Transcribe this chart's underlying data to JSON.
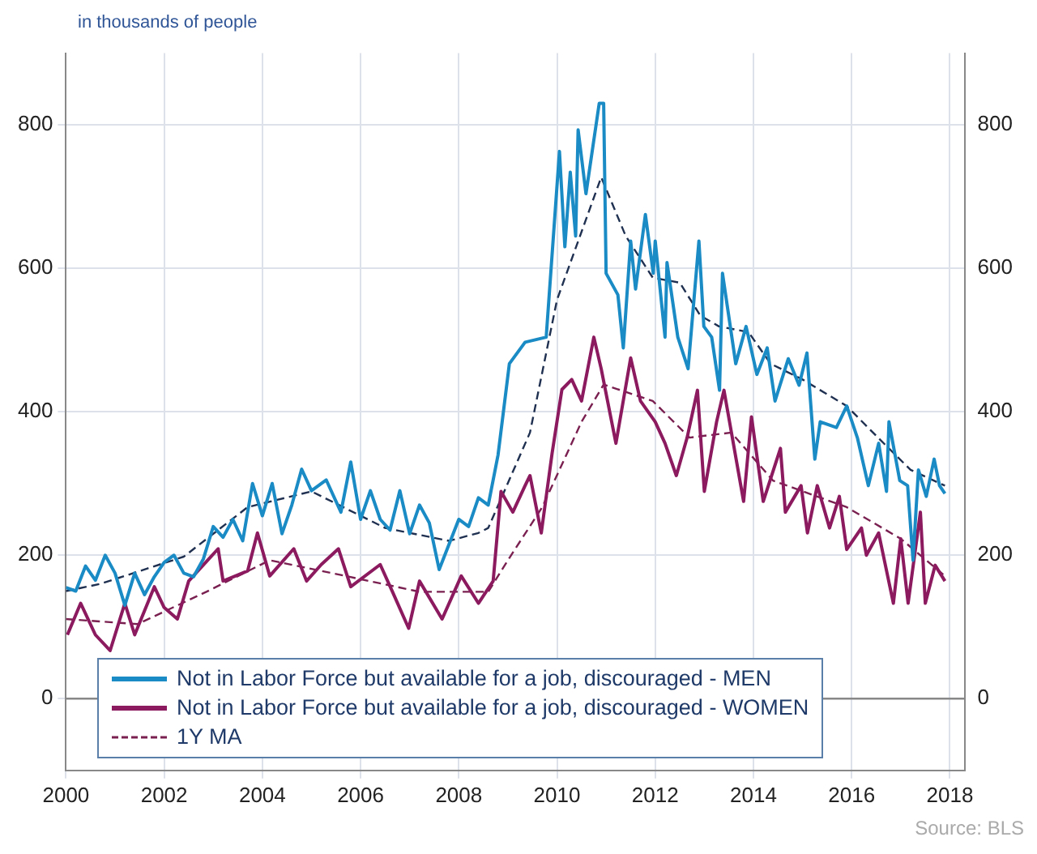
{
  "chart_data": {
    "type": "line",
    "ylabel": "in thousands of people",
    "annotations": [
      "Source: BLS"
    ],
    "xlim": [
      2000,
      2018.3
    ],
    "xticks": [
      2000,
      2002,
      2004,
      2006,
      2008,
      2010,
      2012,
      2014,
      2016,
      2018
    ],
    "ylim": [
      -100,
      900
    ],
    "yticks": [
      0,
      200,
      400,
      600,
      800
    ],
    "y2lim": [
      -100,
      900
    ],
    "y2ticks": [
      0,
      200,
      400,
      600,
      800
    ],
    "grid": true,
    "legend": "bottom left",
    "marker": "none",
    "series": [
      {
        "name": "Not in Labor Force but available for a job, discouraged - MEN",
        "color": "#1a8bc4",
        "line_style": "solid",
        "x": [
          2000.0,
          2000.2,
          2000.4,
          2000.6,
          2000.8,
          2001.0,
          2001.2,
          2001.4,
          2001.6,
          2001.8,
          2002.0,
          2002.2,
          2002.4,
          2002.6,
          2002.8,
          2003.0,
          2003.2,
          2003.4,
          2003.6,
          2003.8,
          2004.0,
          2004.2,
          2004.4,
          2004.6,
          2004.8,
          2005.0,
          2005.3,
          2005.6,
          2005.8,
          2006.0,
          2006.2,
          2006.4,
          2006.6,
          2006.8,
          2007.0,
          2007.2,
          2007.4,
          2007.6,
          2007.8,
          2008.0,
          2008.2,
          2008.4,
          2008.6,
          2008.8,
          2009.03,
          2009.35,
          2009.78,
          2010.05,
          2010.16,
          2010.27,
          2010.38,
          2010.43,
          2010.59,
          2010.86,
          2010.95,
          2011.0,
          2011.24,
          2011.35,
          2011.5,
          2011.6,
          2011.8,
          2011.96,
          2012.0,
          2012.2,
          2012.24,
          2012.46,
          2012.67,
          2012.89,
          2012.99,
          2013.15,
          2013.31,
          2013.37,
          2013.64,
          2013.85,
          2014.07,
          2014.28,
          2014.44,
          2014.71,
          2014.93,
          2015.09,
          2015.25,
          2015.36,
          2015.69,
          2015.9,
          2016.12,
          2016.34,
          2016.55,
          2016.71,
          2016.76,
          2016.98,
          2017.14,
          2017.25,
          2017.36,
          2017.52,
          2017.68,
          2017.79,
          2017.9
        ],
        "values": [
          155,
          150,
          185,
          165,
          200,
          175,
          130,
          175,
          145,
          170,
          190,
          200,
          175,
          170,
          195,
          240,
          225,
          250,
          220,
          300,
          255,
          300,
          230,
          270,
          320,
          290,
          305,
          260,
          330,
          250,
          290,
          250,
          235,
          290,
          230,
          270,
          245,
          180,
          215,
          250,
          240,
          280,
          270,
          340,
          467,
          497,
          504,
          763,
          630,
          734,
          645,
          793,
          704,
          830,
          830,
          593,
          563,
          489,
          638,
          571,
          675,
          593,
          638,
          504,
          608,
          504,
          460,
          638,
          519,
          504,
          430,
          593,
          467,
          519,
          452,
          489,
          415,
          474,
          437,
          482,
          334,
          386,
          378,
          408,
          363,
          297,
          356,
          289,
          386,
          304,
          297,
          193,
          319,
          282,
          334,
          297,
          286
        ]
      },
      {
        "name": "Not in Labor Force but available for a job, discouraged - WOMEN",
        "color": "#8b1a5e",
        "line_style": "solid",
        "x": [
          2000.03,
          2000.3,
          2000.6,
          2000.9,
          2001.2,
          2001.4,
          2001.8,
          2002.0,
          2002.27,
          2002.5,
          2003.1,
          2003.2,
          2003.7,
          2003.9,
          2004.15,
          2004.64,
          2004.9,
          2005.2,
          2005.55,
          2005.8,
          2006.4,
          2006.65,
          2006.98,
          2007.2,
          2007.66,
          2008.05,
          2008.4,
          2008.7,
          2008.86,
          2009.1,
          2009.35,
          2009.45,
          2009.68,
          2009.9,
          2010.1,
          2010.3,
          2010.5,
          2010.75,
          2010.9,
          2011.2,
          2011.5,
          2011.7,
          2012.0,
          2012.2,
          2012.43,
          2012.65,
          2012.86,
          2013.0,
          2013.25,
          2013.4,
          2013.8,
          2013.96,
          2014.2,
          2014.55,
          2014.65,
          2014.97,
          2015.1,
          2015.3,
          2015.55,
          2015.75,
          2015.9,
          2016.2,
          2016.3,
          2016.55,
          2016.85,
          2017.0,
          2017.15,
          2017.4,
          2017.5,
          2017.7,
          2017.9
        ],
        "values": [
          89,
          133,
          89,
          67,
          133,
          89,
          156,
          127,
          111,
          164,
          209,
          164,
          178,
          231,
          171,
          209,
          164,
          187,
          209,
          156,
          187,
          149,
          98,
          164,
          111,
          171,
          133,
          164,
          289,
          260,
          297,
          311,
          231,
          342,
          431,
          445,
          415,
          504,
          460,
          356,
          475,
          415,
          386,
          356,
          311,
          364,
          430,
          289,
          386,
          430,
          275,
          393,
          275,
          349,
          260,
          297,
          231,
          297,
          238,
          282,
          208,
          238,
          200,
          231,
          133,
          223,
          133,
          260,
          133,
          186,
          164
        ]
      },
      {
        "color": "#1f3050",
        "line_style": "dashed",
        "x": [
          2000.0,
          2000.7,
          2002.4,
          2003.7,
          2005.0,
          2006.5,
          2007.8,
          2008.4,
          2008.6,
          2009.45,
          2010.0,
          2010.9,
          2011.4,
          2011.95,
          2012.5,
          2012.92,
          2013.3,
          2013.9,
          2014.35,
          2015.0,
          2015.9,
          2016.55,
          2017.2,
          2017.9
        ],
        "values": [
          150,
          160,
          198,
          267,
          289,
          238,
          220,
          231,
          238,
          371,
          556,
          727,
          645,
          587,
          580,
          534,
          519,
          511,
          467,
          445,
          408,
          363,
          319,
          297
        ]
      },
      {
        "name": "1Y MA",
        "color": "#7a2050",
        "line_style": "dashed",
        "x": [
          2000.0,
          2001.46,
          2002.86,
          2004.15,
          2005.7,
          2007.2,
          2008.6,
          2009.0,
          2009.7,
          2010.5,
          2010.95,
          2011.95,
          2012.7,
          2013.55,
          2014.4,
          2015.9,
          2017.0,
          2017.9
        ],
        "values": [
          111,
          104,
          149,
          193,
          171,
          149,
          149,
          193,
          267,
          386,
          438,
          415,
          364,
          371,
          304,
          267,
          223,
          171
        ]
      }
    ]
  }
}
